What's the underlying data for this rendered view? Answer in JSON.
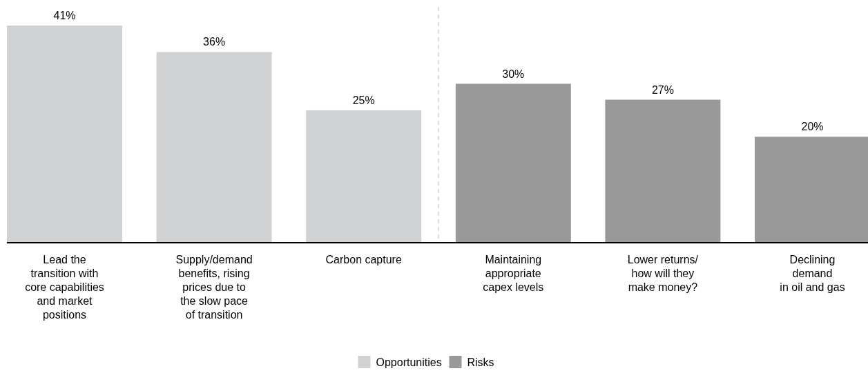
{
  "chart_data": {
    "type": "bar",
    "stacked": true,
    "categories": [
      "Lead the\ntransition with\ncore capabilities\nand market\npositions",
      "Supply/demand\nbenefits, rising\nprices due to\nthe slow pace\nof transition",
      "Carbon capture",
      "Maintaining\nappropriate\ncapex levels",
      "Lower returns/\nhow will they\nmake money?",
      "Declining\ndemand\nin oil and gas"
    ],
    "series": [
      {
        "name": "Opportunities",
        "color": "#d1d2d4",
        "values": [
          41,
          36,
          25,
          null,
          null,
          null
        ],
        "value_labels": [
          "41%",
          "36%",
          "25%",
          null,
          null,
          null
        ]
      },
      {
        "name": "Risks",
        "color": "#999999",
        "values": [
          null,
          null,
          null,
          30,
          27,
          20
        ],
        "value_labels": [
          null,
          null,
          null,
          "30%",
          "27%",
          "20%"
        ]
      }
    ],
    "legend": "bottom"
  }
}
